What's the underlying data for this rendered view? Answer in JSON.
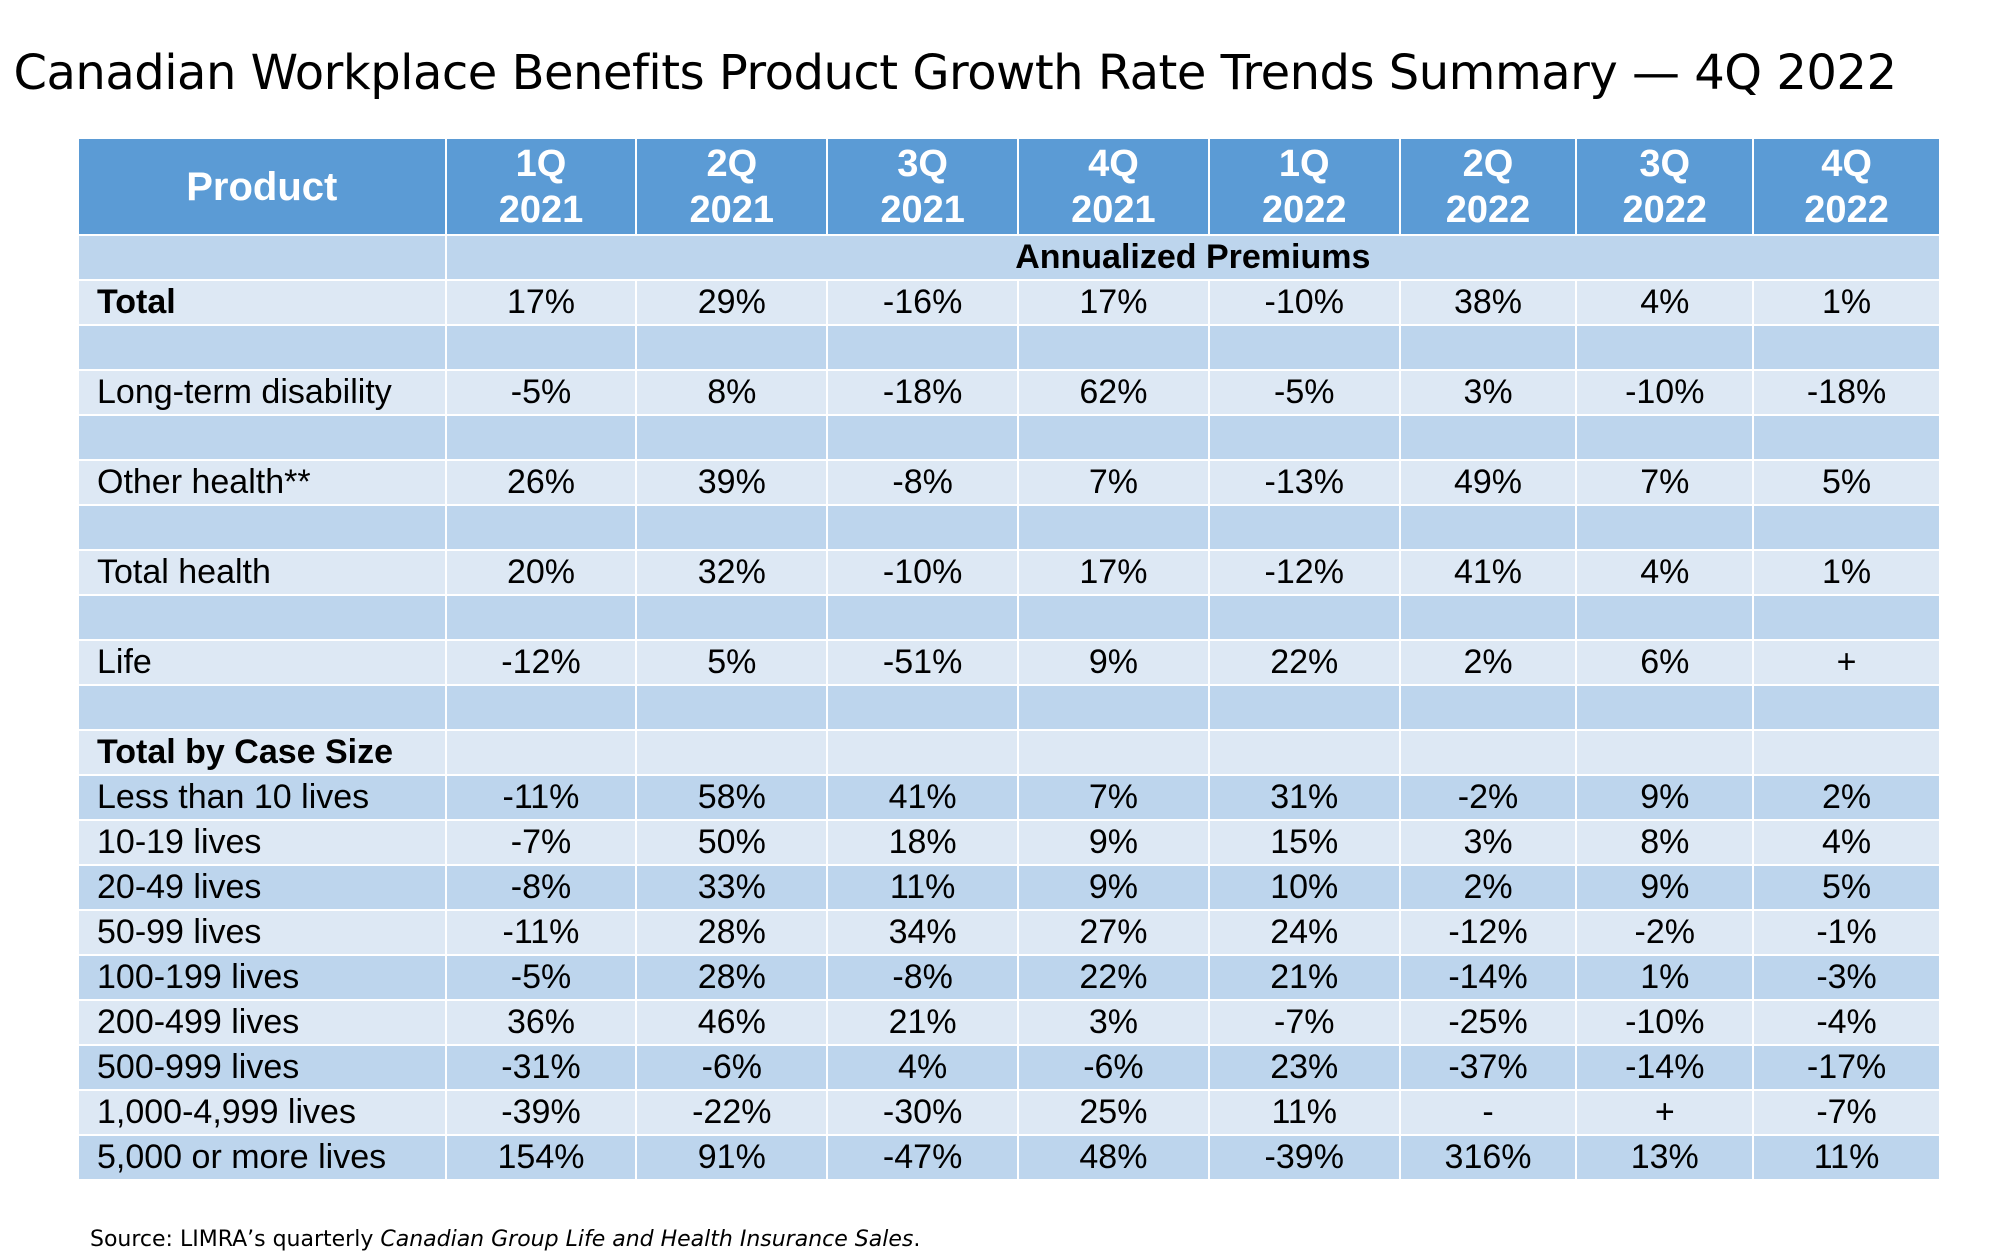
{
  "title": "Canadian Workplace Benefits Product Growth Rate Trends Summary — 4Q 2022",
  "colors": {
    "header": "#5b9bd5",
    "row_dark": "#bdd5ed",
    "row_light": "#dde8f4",
    "header_text": "#ffffff"
  },
  "table": {
    "product_header": "Product",
    "columns": [
      {
        "q": "1Q",
        "y": "2021"
      },
      {
        "q": "2Q",
        "y": "2021"
      },
      {
        "q": "3Q",
        "y": "2021"
      },
      {
        "q": "4Q",
        "y": "2021"
      },
      {
        "q": "1Q",
        "y": "2022"
      },
      {
        "q": "2Q",
        "y": "2022"
      },
      {
        "q": "3Q",
        "y": "2022"
      },
      {
        "q": "4Q",
        "y": "2022"
      }
    ],
    "subheader": "Annualized Premiums",
    "rows": [
      {
        "label": "Total",
        "values": [
          "17%",
          "29%",
          "-16%",
          "17%",
          "-10%",
          "38%",
          "4%",
          "1%"
        ]
      },
      {
        "label": "Long-term disability",
        "values": [
          "-5%",
          "8%",
          "-18%",
          "62%",
          "-5%",
          "3%",
          "-10%",
          "-18%"
        ]
      },
      {
        "label": "Other health**",
        "values": [
          "26%",
          "39%",
          "-8%",
          "7%",
          "-13%",
          "49%",
          "7%",
          "5%"
        ]
      },
      {
        "label": "Total health",
        "values": [
          "20%",
          "32%",
          "-10%",
          "17%",
          "-12%",
          "41%",
          "4%",
          "1%"
        ]
      },
      {
        "label": "Life",
        "values": [
          "-12%",
          "5%",
          "-51%",
          "9%",
          "22%",
          "2%",
          "6%",
          "+"
        ]
      }
    ],
    "case_size_header": "Total by Case Size",
    "case_rows": [
      {
        "label": "Less than 10 lives",
        "values": [
          "-11%",
          "58%",
          "41%",
          "7%",
          "31%",
          "-2%",
          "9%",
          "2%"
        ]
      },
      {
        "label": "10-19 lives",
        "values": [
          "-7%",
          "50%",
          "18%",
          "9%",
          "15%",
          "3%",
          "8%",
          "4%"
        ]
      },
      {
        "label": "20-49 lives",
        "values": [
          "-8%",
          "33%",
          "11%",
          "9%",
          "10%",
          "2%",
          "9%",
          "5%"
        ]
      },
      {
        "label": "50-99 lives",
        "values": [
          "-11%",
          "28%",
          "34%",
          "27%",
          "24%",
          "-12%",
          "-2%",
          "-1%"
        ]
      },
      {
        "label": "100-199 lives",
        "values": [
          "-5%",
          "28%",
          "-8%",
          "22%",
          "21%",
          "-14%",
          "1%",
          "-3%"
        ]
      },
      {
        "label": "200-499 lives",
        "values": [
          "36%",
          "46%",
          "21%",
          "3%",
          "-7%",
          "-25%",
          "-10%",
          "-4%"
        ]
      },
      {
        "label": "500-999 lives",
        "values": [
          "-31%",
          "-6%",
          "4%",
          "-6%",
          "23%",
          "-37%",
          "-14%",
          "-17%"
        ]
      },
      {
        "label": "1,000-4,999 lives",
        "values": [
          "-39%",
          "-22%",
          "-30%",
          "25%",
          "11%",
          "-",
          "+",
          "-7%"
        ]
      },
      {
        "label": "5,000 or more lives",
        "values": [
          "154%",
          "91%",
          "-47%",
          "48%",
          "-39%",
          "316%",
          "13%",
          "11%"
        ]
      }
    ]
  },
  "source": {
    "prefix": "Source: LIMRA’s quarterly ",
    "italic": "Canadian Group Life and Health Insurance Sales",
    "suffix": "."
  }
}
